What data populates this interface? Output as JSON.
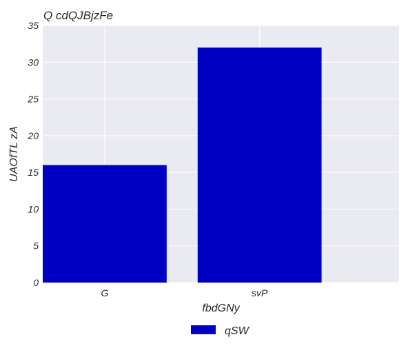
{
  "chart_data": {
    "type": "bar",
    "title": "Q cdQJBjzFe",
    "xlabel": "fbdGNy",
    "ylabel": "UAOfTL zA",
    "categories": [
      "G",
      "svP"
    ],
    "series": [
      {
        "name": "qSW",
        "values": [
          16,
          32
        ],
        "color": "#0000c4"
      }
    ],
    "ylim": [
      0,
      35
    ],
    "yticks": [
      0,
      5,
      10,
      15,
      20,
      25,
      30,
      35
    ],
    "grid": true,
    "legend": "bottom-center",
    "background": "#eaeaf2"
  }
}
